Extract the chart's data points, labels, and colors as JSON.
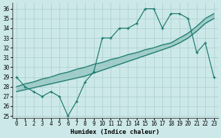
{
  "xlabel": "Humidex (Indice chaleur)",
  "background_color": "#cce8e8",
  "grid_color": "#aacccc",
  "line_color": "#1a7a6e",
  "xlim": [
    -0.5,
    23.5
  ],
  "ylim": [
    24.8,
    36.6
  ],
  "yticks": [
    25,
    26,
    27,
    28,
    29,
    30,
    31,
    32,
    33,
    34,
    35,
    36
  ],
  "xticks": [
    0,
    1,
    2,
    3,
    4,
    5,
    6,
    7,
    8,
    9,
    10,
    11,
    12,
    13,
    14,
    15,
    16,
    17,
    18,
    19,
    20,
    21,
    22,
    23
  ],
  "series_marker_x": [
    0,
    1,
    2,
    3,
    4,
    5,
    6,
    7,
    8,
    9,
    10,
    11,
    12,
    13,
    14,
    15,
    16,
    17,
    18,
    19,
    20,
    21,
    22,
    23
  ],
  "series_marker_y": [
    29.0,
    28.0,
    27.5,
    27.0,
    27.5,
    27.0,
    25.0,
    26.5,
    28.5,
    29.5,
    33.0,
    33.0,
    34.0,
    34.0,
    34.5,
    36.0,
    36.0,
    34.0,
    35.5,
    35.5,
    35.0,
    31.5,
    32.5,
    29.0
  ],
  "series_upper_x": [
    0,
    1,
    2,
    3,
    4,
    5,
    6,
    7,
    8,
    9,
    10,
    11,
    12,
    13,
    14,
    15,
    16,
    17,
    18,
    19,
    20,
    21,
    22,
    23
  ],
  "series_upper_y": [
    28.0,
    28.3,
    28.5,
    28.8,
    29.0,
    29.3,
    29.5,
    29.8,
    30.0,
    30.3,
    30.5,
    30.8,
    31.0,
    31.3,
    31.5,
    31.8,
    32.0,
    32.3,
    32.5,
    33.0,
    33.5,
    34.2,
    35.0,
    35.5
  ],
  "series_lower_x": [
    0,
    1,
    2,
    3,
    4,
    5,
    6,
    7,
    8,
    9,
    10,
    11,
    12,
    13,
    14,
    15,
    16,
    17,
    18,
    19,
    20,
    21,
    22,
    23
  ],
  "series_lower_y": [
    27.5,
    27.7,
    27.9,
    28.1,
    28.3,
    28.5,
    28.7,
    28.9,
    29.1,
    29.4,
    29.7,
    30.0,
    30.3,
    30.6,
    30.9,
    31.2,
    31.5,
    31.8,
    32.1,
    32.5,
    33.0,
    33.7,
    34.5,
    35.0
  ]
}
